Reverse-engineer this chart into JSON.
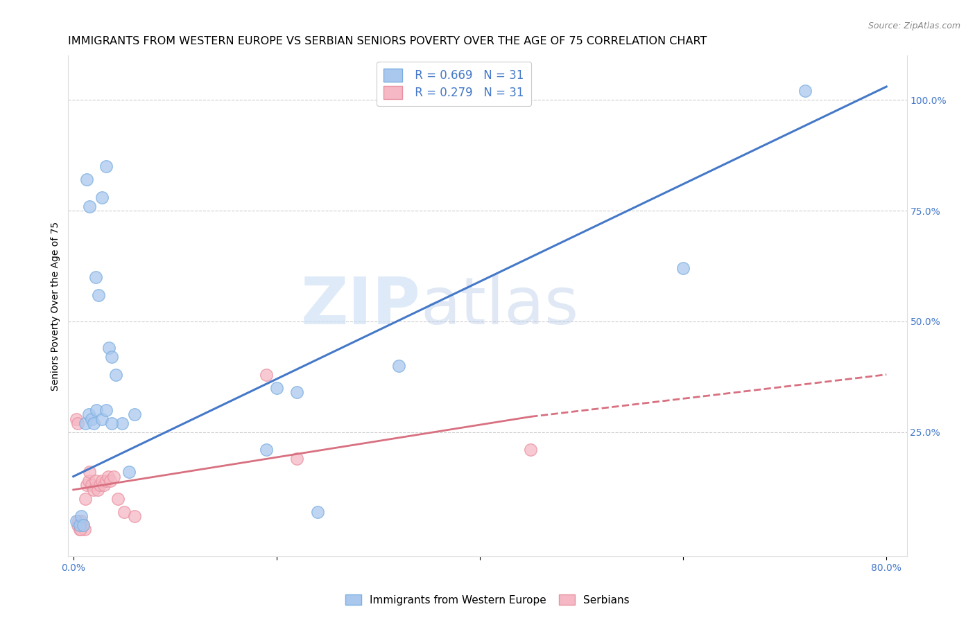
{
  "title": "IMMIGRANTS FROM WESTERN EUROPE VS SERBIAN SENIORS POVERTY OVER THE AGE OF 75 CORRELATION CHART",
  "source": "Source: ZipAtlas.com",
  "ylabel": "Seniors Poverty Over the Age of 75",
  "xlim": [
    -0.005,
    0.82
  ],
  "ylim": [
    -0.03,
    1.1
  ],
  "blue_scatter_x": [
    0.032,
    0.028,
    0.013,
    0.016,
    0.022,
    0.025,
    0.035,
    0.038,
    0.042,
    0.048,
    0.06,
    0.19,
    0.22,
    0.6,
    0.72,
    0.003,
    0.006,
    0.008,
    0.01,
    0.012,
    0.015,
    0.018,
    0.02,
    0.023,
    0.028,
    0.032,
    0.038,
    0.055,
    0.2,
    0.24,
    0.32
  ],
  "blue_scatter_y": [
    0.85,
    0.78,
    0.82,
    0.76,
    0.6,
    0.56,
    0.44,
    0.42,
    0.38,
    0.27,
    0.29,
    0.21,
    0.34,
    0.62,
    1.02,
    0.05,
    0.04,
    0.06,
    0.04,
    0.27,
    0.29,
    0.28,
    0.27,
    0.3,
    0.28,
    0.3,
    0.27,
    0.16,
    0.35,
    0.07,
    0.4
  ],
  "pink_scatter_x": [
    0.003,
    0.004,
    0.005,
    0.006,
    0.007,
    0.008,
    0.01,
    0.011,
    0.012,
    0.013,
    0.015,
    0.016,
    0.018,
    0.02,
    0.022,
    0.024,
    0.026,
    0.028,
    0.03,
    0.032,
    0.034,
    0.036,
    0.04,
    0.044,
    0.05,
    0.06,
    0.19,
    0.22,
    0.45,
    0.004,
    0.007
  ],
  "pink_scatter_y": [
    0.28,
    0.04,
    0.05,
    0.03,
    0.04,
    0.05,
    0.04,
    0.03,
    0.1,
    0.13,
    0.14,
    0.16,
    0.13,
    0.12,
    0.14,
    0.12,
    0.13,
    0.14,
    0.13,
    0.14,
    0.15,
    0.14,
    0.15,
    0.1,
    0.07,
    0.06,
    0.38,
    0.19,
    0.21,
    0.27,
    0.03
  ],
  "blue_line_x0": 0.0,
  "blue_line_x1": 0.8,
  "blue_line_y0": 0.15,
  "blue_line_y1": 1.03,
  "pink_line_solid_x0": 0.0,
  "pink_line_solid_x1": 0.45,
  "pink_line_solid_y0": 0.12,
  "pink_line_solid_y1": 0.285,
  "pink_line_dash_x0": 0.45,
  "pink_line_dash_x1": 0.8,
  "pink_line_dash_y0": 0.285,
  "pink_line_dash_y1": 0.38,
  "blue_color": "#aac8ee",
  "pink_color": "#f5b8c4",
  "blue_scatter_edge": "#7aaee0",
  "pink_scatter_edge": "#e890a0",
  "blue_line_color": "#4478c8",
  "pink_line_color": "#d87080",
  "scatter_size": 160,
  "scatter_alpha": 0.75,
  "legend_r_blue": "R = 0.669",
  "legend_n_blue": "N = 31",
  "legend_r_pink": "R = 0.279",
  "legend_n_pink": "N = 31",
  "watermark_zip": "ZIP",
  "watermark_atlas": "atlas",
  "legend_label_blue": "Immigrants from Western Europe",
  "legend_label_pink": "Serbians",
  "title_fontsize": 11.5,
  "axis_label_fontsize": 10,
  "tick_fontsize": 10,
  "background_color": "#ffffff",
  "grid_color": "#cccccc"
}
